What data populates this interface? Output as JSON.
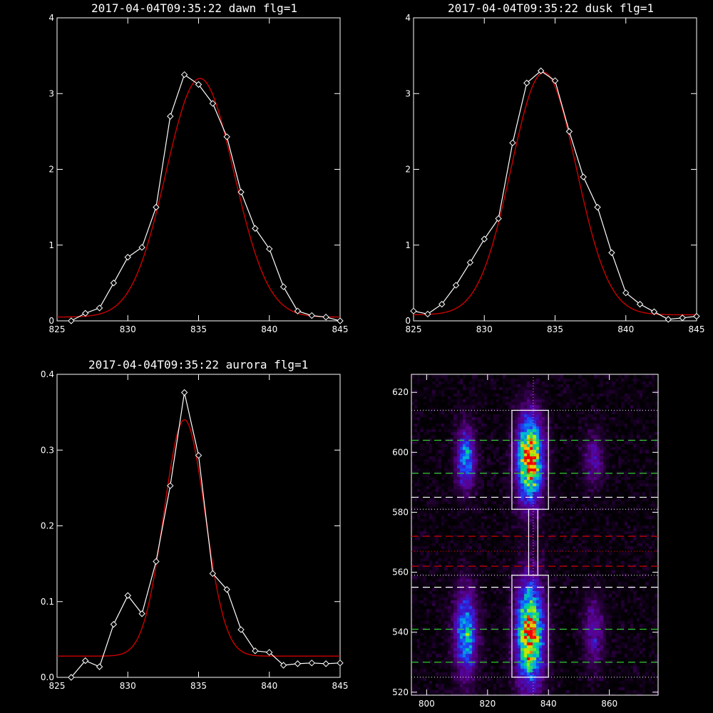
{
  "chart_data": [
    {
      "type": "line",
      "title": "2017-04-04T09:35:22 dawn flg=1",
      "xlim": [
        825,
        845
      ],
      "ylim": [
        0,
        4
      ],
      "xticks": [
        825,
        830,
        835,
        840,
        845
      ],
      "yticks": [
        0,
        1,
        2,
        3,
        4
      ],
      "series": [
        {
          "style": "measured",
          "color": "#ffffff",
          "x": [
            826,
            827,
            828,
            829,
            830,
            831,
            832,
            833,
            834,
            835,
            836,
            837,
            838,
            839,
            840,
            841,
            842,
            843,
            844,
            845
          ],
          "y": [
            0.0,
            0.1,
            0.17,
            0.5,
            0.84,
            0.97,
            1.5,
            2.7,
            3.25,
            3.12,
            2.87,
            2.43,
            1.7,
            1.22,
            0.95,
            0.45,
            0.13,
            0.07,
            0.05,
            0.0
          ]
        },
        {
          "style": "fit",
          "color": "#cc0000",
          "amplitude": 3.15,
          "center": 835.1,
          "sigma": 2.4,
          "offset": 0.05
        }
      ]
    },
    {
      "type": "line",
      "title": "2017-04-04T09:35:22 dusk flg=1",
      "xlim": [
        825,
        845
      ],
      "ylim": [
        0,
        4
      ],
      "xticks": [
        825,
        830,
        835,
        840,
        845
      ],
      "yticks": [
        0,
        1,
        2,
        3,
        4
      ],
      "series": [
        {
          "style": "measured",
          "color": "#ffffff",
          "x": [
            825,
            826,
            827,
            828,
            829,
            830,
            831,
            832,
            833,
            834,
            835,
            836,
            837,
            838,
            839,
            840,
            841,
            842,
            843,
            844,
            845
          ],
          "y": [
            0.13,
            0.09,
            0.22,
            0.47,
            0.77,
            1.08,
            1.35,
            2.35,
            3.14,
            3.3,
            3.17,
            2.5,
            1.9,
            1.5,
            0.9,
            0.37,
            0.22,
            0.12,
            0.02,
            0.04,
            0.06
          ]
        },
        {
          "style": "fit",
          "color": "#cc0000",
          "amplitude": 3.2,
          "center": 834.2,
          "sigma": 2.3,
          "offset": 0.08
        }
      ]
    },
    {
      "type": "line",
      "title": "2017-04-04T09:35:22 aurora flg=1",
      "xlim": [
        825,
        845
      ],
      "ylim": [
        0,
        0.4
      ],
      "xticks": [
        825,
        830,
        835,
        840,
        845
      ],
      "yticks": [
        0.0,
        0.1,
        0.2,
        0.3,
        0.4
      ],
      "series": [
        {
          "style": "measured",
          "color": "#ffffff",
          "x": [
            826,
            827,
            828,
            829,
            830,
            831,
            832,
            833,
            834,
            835,
            836,
            837,
            838,
            839,
            840,
            841,
            842,
            843,
            844,
            845
          ],
          "y": [
            0.0,
            0.022,
            0.014,
            0.07,
            0.108,
            0.084,
            0.153,
            0.253,
            0.376,
            0.293,
            0.137,
            0.116,
            0.063,
            0.035,
            0.033,
            0.016,
            0.018,
            0.019,
            0.018,
            0.019
          ]
        },
        {
          "style": "fit",
          "color": "#cc0000",
          "amplitude": 0.312,
          "center": 834.0,
          "sigma": 1.45,
          "offset": 0.028
        }
      ]
    },
    {
      "type": "heatmap",
      "title": "",
      "xlim": [
        795,
        876
      ],
      "ylim": [
        519,
        626
      ],
      "xticks": [
        800,
        820,
        840,
        860
      ],
      "yticks": [
        520,
        540,
        560,
        580,
        600,
        620
      ],
      "blobs": [
        {
          "x": 834,
          "y": 598,
          "sx": 3.0,
          "sy": 10,
          "amp": 1.0
        },
        {
          "x": 834,
          "y": 540,
          "sx": 3.2,
          "sy": 12,
          "amp": 0.95
        },
        {
          "x": 813,
          "y": 598,
          "sx": 2.2,
          "sy": 7,
          "amp": 0.55
        },
        {
          "x": 813,
          "y": 540,
          "sx": 2.6,
          "sy": 10,
          "amp": 0.6
        },
        {
          "x": 855,
          "y": 598,
          "sx": 2.2,
          "sy": 6,
          "amp": 0.28
        },
        {
          "x": 855,
          "y": 540,
          "sx": 2.2,
          "sy": 8,
          "amp": 0.3
        }
      ],
      "boxes": [
        {
          "x0": 828,
          "x1": 840,
          "y0": 581,
          "y1": 614
        },
        {
          "x0": 828,
          "x1": 840,
          "y0": 525,
          "y1": 559
        },
        {
          "x0": 833.5,
          "x1": 836.5,
          "y0": 559,
          "y1": 581
        }
      ],
      "vline_dotted": 835,
      "hlines": [
        {
          "y": 614,
          "color": "#cccccc",
          "style": "dotted"
        },
        {
          "y": 604,
          "color": "#33cc33",
          "style": "dashed"
        },
        {
          "y": 593,
          "color": "#33cc33",
          "style": "dashed"
        },
        {
          "y": 585,
          "color": "#ffffff",
          "style": "dashed"
        },
        {
          "y": 581,
          "color": "#cccccc",
          "style": "dotted"
        },
        {
          "y": 572,
          "color": "#cc0000",
          "style": "dashed"
        },
        {
          "y": 567,
          "color": "#cc0000",
          "style": "dotted"
        },
        {
          "y": 562,
          "color": "#cc0000",
          "style": "dashed"
        },
        {
          "y": 559,
          "color": "#cccccc",
          "style": "dotted"
        },
        {
          "y": 555,
          "color": "#ffffff",
          "style": "dashed"
        },
        {
          "y": 541,
          "color": "#33cc33",
          "style": "dashed"
        },
        {
          "y": 530,
          "color": "#33cc33",
          "style": "dashed"
        },
        {
          "y": 525,
          "color": "#cccccc",
          "style": "dotted"
        }
      ]
    }
  ]
}
